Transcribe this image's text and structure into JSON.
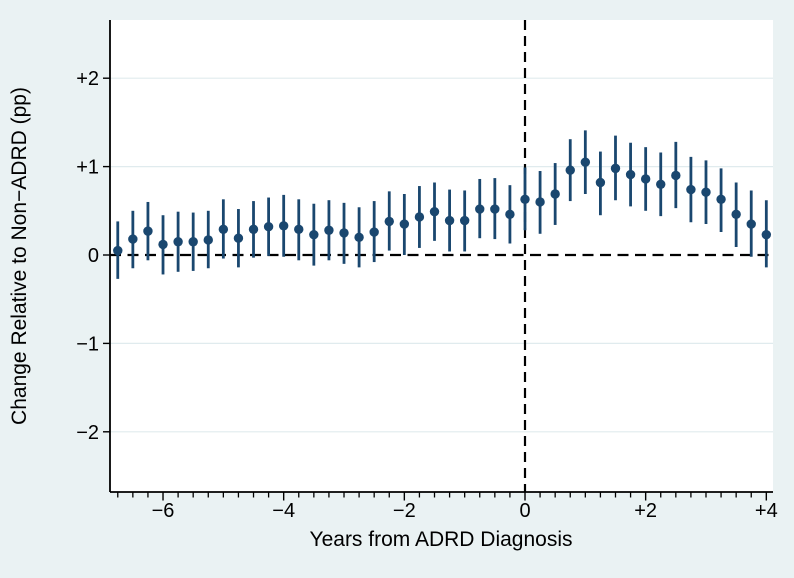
{
  "chart_data": {
    "type": "scatter",
    "title": "",
    "xlabel": "Years from ADRD Diagnosis",
    "ylabel": "Change Relative to Non−ADRD (pp)",
    "legend": "none",
    "x": [
      -6.75,
      -6.5,
      -6.25,
      -6.0,
      -5.75,
      -5.5,
      -5.25,
      -5.0,
      -4.75,
      -4.5,
      -4.25,
      -4.0,
      -3.75,
      -3.5,
      -3.25,
      -3.0,
      -2.75,
      -2.5,
      -2.25,
      -2.0,
      -1.75,
      -1.5,
      -1.25,
      -1.0,
      -0.75,
      -0.5,
      -0.25,
      0.0,
      0.25,
      0.5,
      0.75,
      1.0,
      1.25,
      1.5,
      1.75,
      2.0,
      2.25,
      2.5,
      2.75,
      3.0,
      3.25,
      3.5,
      3.75,
      4.0
    ],
    "series": [
      {
        "name": "estimate",
        "values": [
          0.05,
          0.18,
          0.27,
          0.12,
          0.15,
          0.15,
          0.17,
          0.29,
          0.19,
          0.29,
          0.32,
          0.33,
          0.29,
          0.23,
          0.28,
          0.25,
          0.2,
          0.26,
          0.38,
          0.35,
          0.43,
          0.49,
          0.39,
          0.39,
          0.52,
          0.52,
          0.46,
          0.63,
          0.6,
          0.69,
          0.96,
          1.05,
          0.82,
          0.98,
          0.91,
          0.86,
          0.8,
          0.9,
          0.74,
          0.71,
          0.63,
          0.46,
          0.35,
          0.23
        ]
      },
      {
        "name": "ci_lower",
        "values": [
          -0.27,
          -0.15,
          -0.06,
          -0.22,
          -0.19,
          -0.18,
          -0.15,
          -0.04,
          -0.14,
          -0.03,
          -0.01,
          -0.02,
          -0.06,
          -0.12,
          -0.06,
          -0.1,
          -0.14,
          -0.08,
          0.05,
          0.0,
          0.08,
          0.16,
          0.04,
          0.04,
          0.19,
          0.18,
          0.13,
          0.28,
          0.24,
          0.34,
          0.61,
          0.69,
          0.45,
          0.62,
          0.55,
          0.5,
          0.44,
          0.53,
          0.37,
          0.35,
          0.26,
          0.09,
          -0.02,
          -0.14
        ]
      },
      {
        "name": "ci_upper",
        "values": [
          0.38,
          0.5,
          0.6,
          0.45,
          0.49,
          0.48,
          0.5,
          0.63,
          0.52,
          0.61,
          0.65,
          0.68,
          0.63,
          0.58,
          0.62,
          0.59,
          0.54,
          0.61,
          0.72,
          0.69,
          0.78,
          0.82,
          0.74,
          0.73,
          0.86,
          0.87,
          0.79,
          0.99,
          0.95,
          1.04,
          1.31,
          1.41,
          1.17,
          1.35,
          1.27,
          1.22,
          1.16,
          1.28,
          1.11,
          1.07,
          0.98,
          0.82,
          0.73,
          0.62
        ]
      }
    ],
    "x_ticks": {
      "values": [
        -6,
        -4,
        -2,
        0,
        2,
        4
      ],
      "labels": [
        "−6",
        "−4",
        "−2",
        "0",
        "+2",
        "+4"
      ]
    },
    "y_ticks": {
      "values": [
        -2,
        -1,
        0,
        1,
        2
      ],
      "labels": [
        "−2",
        "−1",
        "0",
        "+1",
        "+2"
      ]
    },
    "x_minor_ticks": {
      "start": -6.75,
      "end": 4.0,
      "step": 0.25
    },
    "y_gridlines": [
      -2,
      -1,
      1,
      2
    ],
    "xlim": [
      -6.88,
      4.11
    ],
    "ylim": [
      -2.68,
      2.66
    ],
    "reference_lines": {
      "horizontal_at_y": 0,
      "vertical_at_x": 0,
      "style": "dashed"
    },
    "colors": {
      "marker": "#1a476f",
      "error_bar": "#1a476f",
      "background": "#eaf2f3",
      "plot_background": "#ffffff",
      "gridline": "#e0ebee",
      "axis": "#000000",
      "dashed_line": "#000000",
      "text": "#000000"
    }
  }
}
